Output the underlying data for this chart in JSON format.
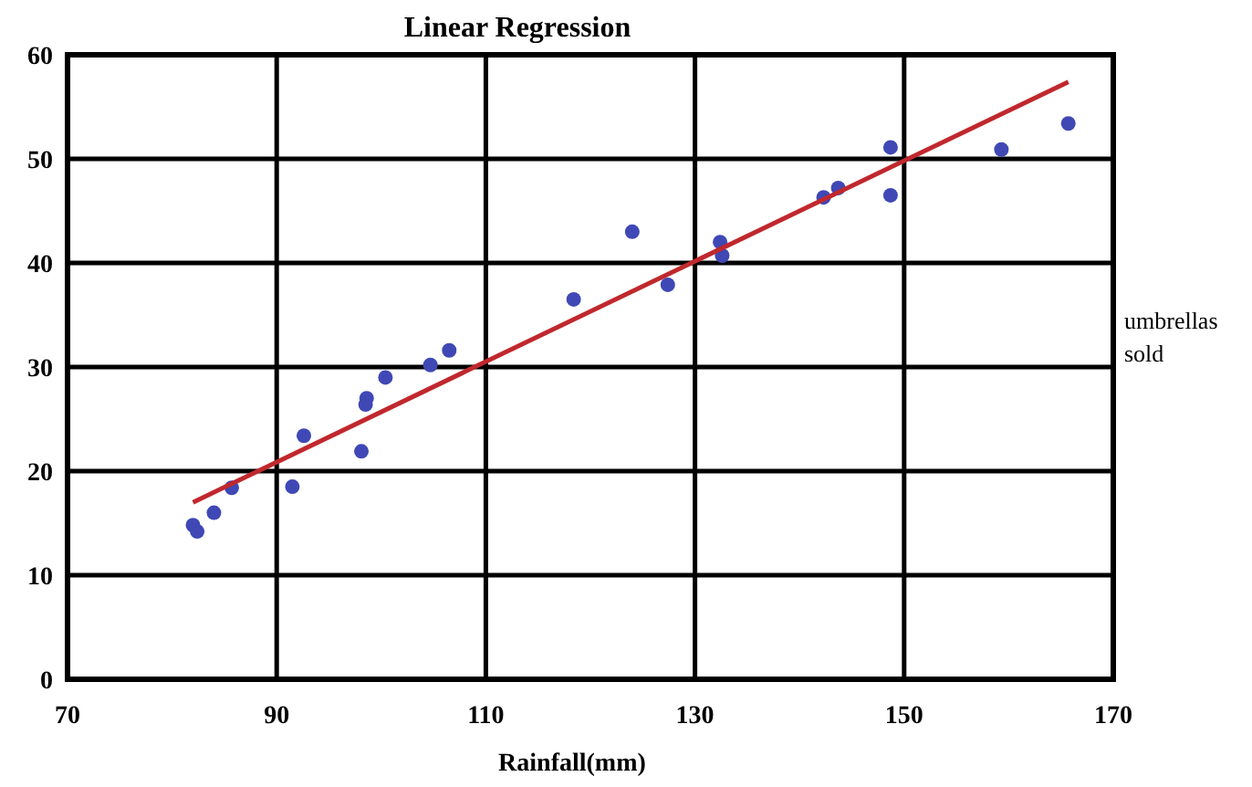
{
  "chart_data": {
    "type": "scatter",
    "title": "Linear Regression",
    "xlabel": "Rainfall(mm)",
    "ylabel": "umbrellas sold",
    "xlim": [
      70,
      170
    ],
    "xticks": [
      70,
      90,
      110,
      130,
      150,
      170
    ],
    "ylim": [
      0,
      60
    ],
    "yticks": [
      0,
      10,
      20,
      30,
      40,
      50,
      60
    ],
    "grid": true,
    "marker": "circle",
    "series": [
      {
        "color": "#3f48b5",
        "x": [
          82,
          82.4,
          84,
          85.7,
          91.5,
          92.6,
          98.1,
          98.5,
          98.6,
          100.4,
          104.7,
          106.5,
          118.4,
          124,
          127.4,
          132.4,
          132.6,
          142.3,
          143.7,
          148.7,
          148.7,
          159.3,
          165.7
        ],
        "values": [
          14.8,
          14.2,
          16,
          18.4,
          18.5,
          23.4,
          21.9,
          26.4,
          27,
          29,
          30.2,
          31.6,
          36.5,
          43,
          37.9,
          42,
          40.7,
          46.3,
          47.2,
          51.1,
          46.5,
          50.9,
          53.4
        ]
      },
      {
        "type": "line",
        "color": "#c0282d",
        "marker": "none",
        "x": [
          82,
          165.7
        ],
        "values": [
          17,
          57.4
        ]
      }
    ]
  }
}
